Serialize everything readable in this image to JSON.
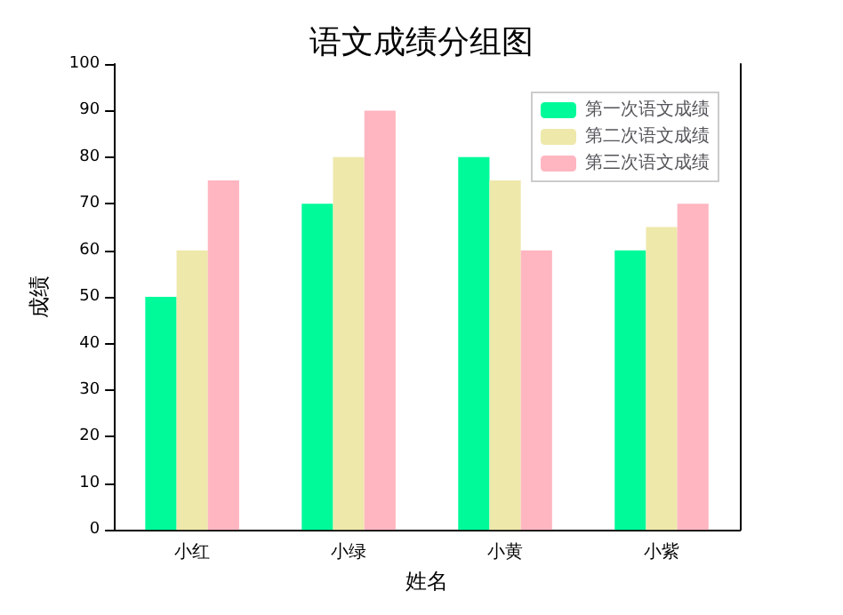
{
  "chart_data": {
    "type": "bar",
    "title": "语文成绩分组图",
    "xlabel": "姓名",
    "ylabel": "成绩",
    "categories": [
      "小红",
      "小绿",
      "小黄",
      "小紫"
    ],
    "series": [
      {
        "name": "第一次语文成绩",
        "color": "#00fa9a",
        "values": [
          50,
          70,
          80,
          60
        ]
      },
      {
        "name": "第二次语文成绩",
        "color": "#eee8aa",
        "values": [
          60,
          80,
          75,
          65
        ]
      },
      {
        "name": "第三次语文成绩",
        "color": "#ffb6c1",
        "values": [
          75,
          90,
          60,
          70
        ]
      }
    ],
    "ylim": [
      0,
      100
    ],
    "yticks": [
      0,
      10,
      20,
      30,
      40,
      50,
      60,
      70,
      80,
      90,
      100
    ],
    "grid": false,
    "legend": "top right"
  }
}
